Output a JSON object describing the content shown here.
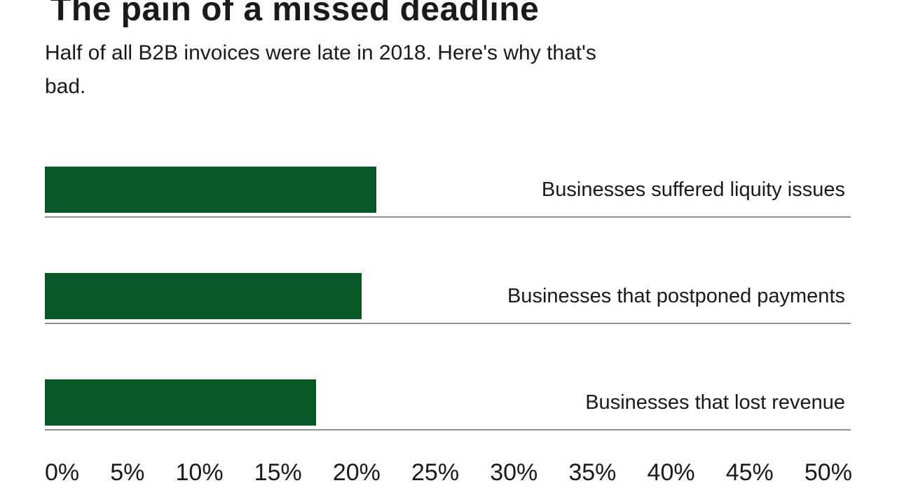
{
  "chart": {
    "title": "The pain of a missed deadline",
    "subtitle_lines": [
      "Half of all B2B invoices were late in 2018. Here's why that's",
      "bad."
    ],
    "bars": [
      {
        "label": "Businesses suffered liquity issues",
        "value": 22
      },
      {
        "label": "Businesses that postponed payments",
        "value": 21
      },
      {
        "label": "Businesses that lost revenue",
        "value": 18
      }
    ],
    "axis_ticks": [
      "0%",
      "5%",
      "10%",
      "15%",
      "20%",
      "25%",
      "30%",
      "35%",
      "40%",
      "45%",
      "50%"
    ]
  },
  "chart_data": {
    "type": "bar",
    "orientation": "horizontal",
    "title": "The pain of a missed deadline",
    "subtitle": "Half of all B2B invoices were late in 2018. Here's why that's bad.",
    "categories": [
      "Businesses suffered liquity issues",
      "Businesses that postponed payments",
      "Businesses that lost revenue"
    ],
    "values": [
      22,
      21,
      18
    ],
    "unit": "%",
    "xlabel": "",
    "ylabel": "",
    "xlim": [
      0,
      50
    ],
    "x_ticks": [
      0,
      5,
      10,
      15,
      20,
      25,
      30,
      35,
      40,
      45,
      50
    ],
    "x_tick_labels": [
      "0%",
      "5%",
      "10%",
      "15%",
      "20%",
      "25%",
      "30%",
      "35%",
      "40%",
      "45%",
      "50%"
    ],
    "grid": false,
    "legend": false,
    "label_position": "right-of-bar",
    "bar_color": "#085825",
    "text_color": "#1a1a1a",
    "row_underline_color": "#8f8f8f"
  }
}
